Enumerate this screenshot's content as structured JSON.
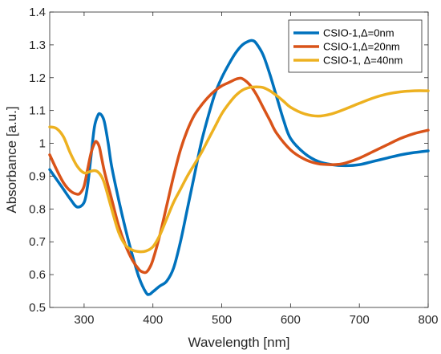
{
  "chart_data": {
    "type": "line",
    "title": "",
    "xlabel": "Wavelength [nm]",
    "ylabel": "Absorbance [a.u.]",
    "xlim": [
      250,
      800
    ],
    "ylim": [
      0.5,
      1.4
    ],
    "xticks": [
      300,
      400,
      500,
      600,
      700,
      800
    ],
    "yticks": [
      0.5,
      0.6,
      0.7,
      0.8,
      0.9,
      1,
      1.1,
      1.2,
      1.3,
      1.4
    ],
    "grid": false,
    "legend_position": "top-right",
    "series": [
      {
        "name": "CSIO-1,Δ=0nm",
        "color": "#0072BD",
        "x": [
          250,
          260,
          270,
          280,
          290,
          300,
          305,
          310,
          315,
          320,
          323,
          327,
          330,
          335,
          340,
          350,
          360,
          370,
          380,
          390,
          395,
          400,
          410,
          420,
          430,
          440,
          450,
          460,
          470,
          480,
          490,
          500,
          510,
          520,
          530,
          540,
          545,
          550,
          560,
          570,
          580,
          590,
          600,
          620,
          640,
          660,
          680,
          700,
          720,
          740,
          760,
          780,
          800
        ],
        "y": [
          0.92,
          0.89,
          0.86,
          0.83,
          0.806,
          0.82,
          0.87,
          0.96,
          1.05,
          1.085,
          1.09,
          1.08,
          1.06,
          1.0,
          0.93,
          0.83,
          0.74,
          0.66,
          0.59,
          0.545,
          0.54,
          0.548,
          0.565,
          0.58,
          0.62,
          0.7,
          0.8,
          0.9,
          1.0,
          1.08,
          1.15,
          1.2,
          1.24,
          1.275,
          1.3,
          1.312,
          1.313,
          1.305,
          1.27,
          1.21,
          1.14,
          1.07,
          1.015,
          0.97,
          0.945,
          0.935,
          0.932,
          0.935,
          0.945,
          0.955,
          0.965,
          0.972,
          0.977
        ]
      },
      {
        "name": "CSIO-1,Δ=20nm",
        "color": "#D95319",
        "x": [
          250,
          260,
          270,
          280,
          290,
          295,
          300,
          305,
          310,
          315,
          318,
          322,
          325,
          330,
          340,
          350,
          360,
          370,
          380,
          385,
          390,
          395,
          400,
          410,
          420,
          430,
          440,
          450,
          460,
          470,
          480,
          490,
          500,
          510,
          520,
          525,
          530,
          540,
          550,
          560,
          570,
          580,
          600,
          620,
          640,
          660,
          670,
          680,
          700,
          720,
          740,
          760,
          780,
          800
        ],
        "y": [
          0.965,
          0.92,
          0.88,
          0.855,
          0.845,
          0.85,
          0.87,
          0.92,
          0.97,
          1.0,
          1.005,
          0.99,
          0.96,
          0.91,
          0.83,
          0.75,
          0.69,
          0.645,
          0.615,
          0.608,
          0.607,
          0.62,
          0.645,
          0.72,
          0.81,
          0.9,
          0.98,
          1.04,
          1.085,
          1.115,
          1.14,
          1.16,
          1.175,
          1.185,
          1.195,
          1.198,
          1.197,
          1.18,
          1.15,
          1.11,
          1.07,
          1.03,
          0.98,
          0.952,
          0.938,
          0.935,
          0.936,
          0.94,
          0.955,
          0.975,
          0.995,
          1.015,
          1.03,
          1.04
        ]
      },
      {
        "name": "CSIO-1, Δ=40nm",
        "color": "#EDB120",
        "x": [
          250,
          260,
          270,
          280,
          290,
          300,
          310,
          315,
          320,
          325,
          330,
          340,
          350,
          360,
          370,
          380,
          390,
          400,
          410,
          420,
          430,
          440,
          450,
          460,
          470,
          480,
          490,
          500,
          510,
          520,
          530,
          540,
          550,
          560,
          570,
          580,
          590,
          600,
          620,
          640,
          660,
          680,
          700,
          720,
          740,
          760,
          780,
          800
        ],
        "y": [
          1.05,
          1.045,
          1.02,
          0.97,
          0.93,
          0.91,
          0.915,
          0.917,
          0.913,
          0.9,
          0.875,
          0.8,
          0.73,
          0.69,
          0.675,
          0.67,
          0.672,
          0.685,
          0.72,
          0.77,
          0.82,
          0.86,
          0.9,
          0.935,
          0.97,
          1.01,
          1.05,
          1.09,
          1.12,
          1.145,
          1.162,
          1.17,
          1.172,
          1.17,
          1.16,
          1.145,
          1.128,
          1.11,
          1.09,
          1.083,
          1.09,
          1.105,
          1.122,
          1.138,
          1.15,
          1.157,
          1.16,
          1.16
        ]
      }
    ]
  }
}
